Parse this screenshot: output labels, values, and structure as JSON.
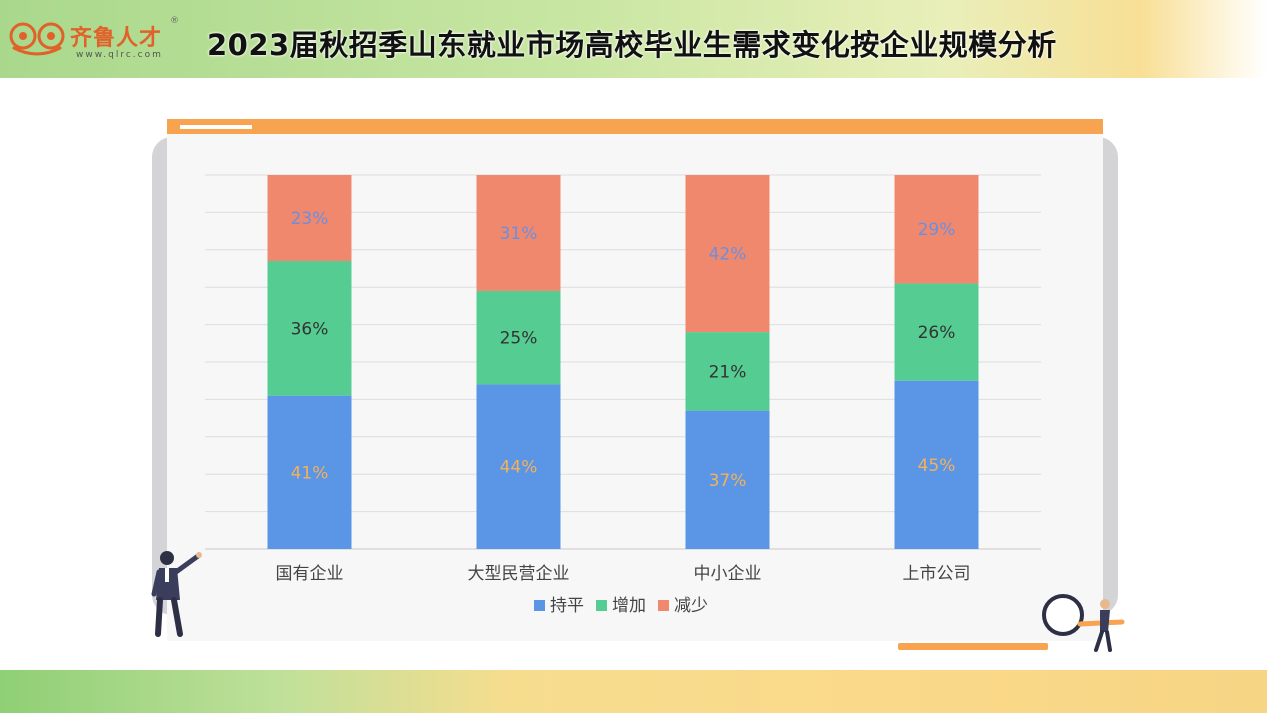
{
  "header": {
    "logo_name": "齐鲁人才",
    "logo_registered": "®",
    "logo_url": "www.qlrc.com",
    "title": "2023届秋招季山东就业市场高校毕业生需求变化按企业规模分析"
  },
  "colors": {
    "flat": "#5b95e5",
    "increase": "#55cc92",
    "decrease": "#f0886e",
    "accent": "#f7a34f",
    "label_on_blue": "#f3b25a",
    "label_on_red": "#6b8fe0",
    "label_on_green": "#333333"
  },
  "chart_data": {
    "type": "bar",
    "stacked": true,
    "categories": [
      "国有企业",
      "大型民营企业",
      "中小企业",
      "上市公司"
    ],
    "series": [
      {
        "name": "持平",
        "values": [
          41,
          44,
          37,
          45
        ],
        "labels": [
          "41%",
          "44%",
          "37%",
          "45%"
        ]
      },
      {
        "name": "增加",
        "values": [
          36,
          25,
          21,
          26
        ],
        "labels": [
          "36%",
          "25%",
          "21%",
          "26%"
        ]
      },
      {
        "name": "减少",
        "values": [
          23,
          31,
          42,
          29
        ],
        "labels": [
          "23%",
          "31%",
          "42%",
          "29%"
        ]
      }
    ],
    "ylim": [
      0,
      100
    ],
    "grid": true,
    "legend": "bottom"
  }
}
